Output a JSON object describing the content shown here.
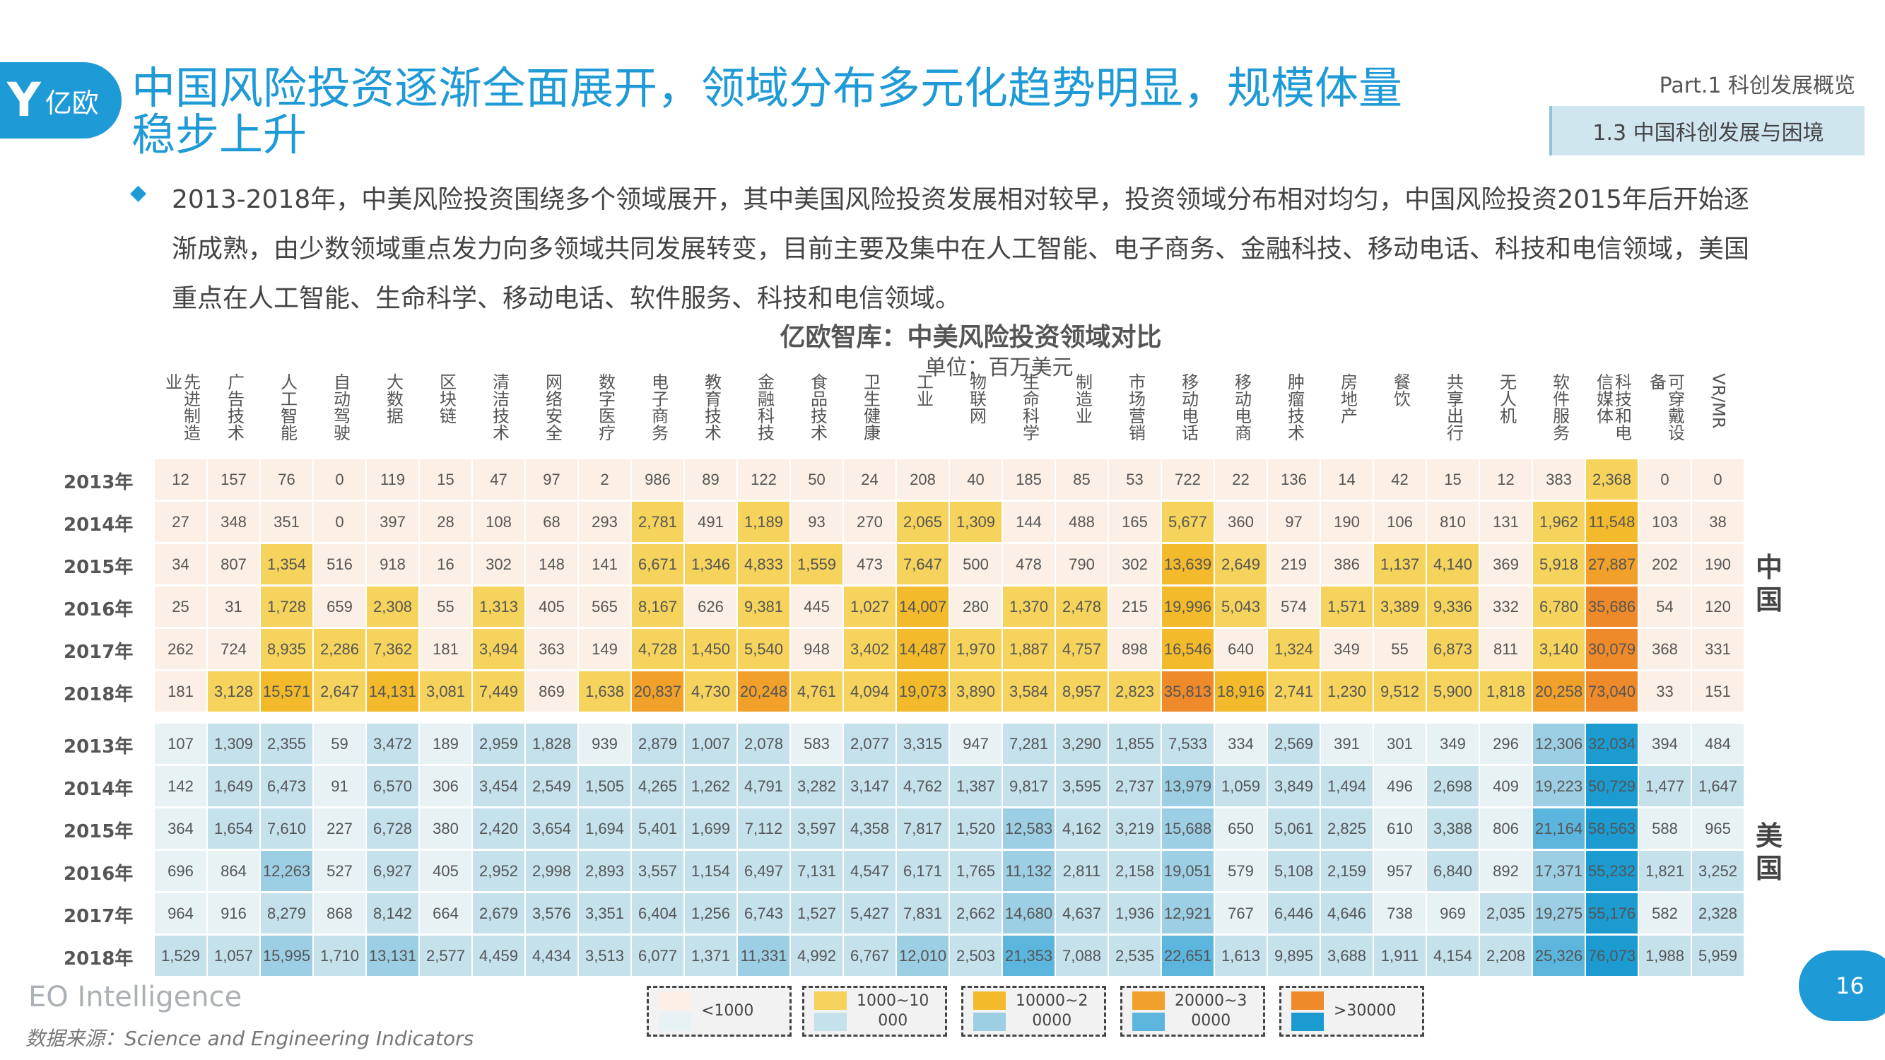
{
  "logo": {
    "mark": "Y",
    "text": "亿欧"
  },
  "header": {
    "title": "中国风险投资逐渐全面展开，领域分布多元化趋势明显，规模体量稳步上升",
    "part": "Part.1 科创发展概览",
    "section": "1.3 中国科创发展与困境"
  },
  "body": {
    "bullet_icon": "diamond-icon",
    "text": "2013-2018年，中美风险投资围绕多个领域展开，其中美国风险投资发展相对较早，投资领域分布相对均匀，中国风险投资2015年后开始逐渐成熟，由少数领域重点发力向多领域共同发展转变，目前主要及集中在人工智能、电子商务、金融科技、移动电话、科技和电信领域，美国重点在人工智能、生命科学、移动电话、软件服务、科技和电信领域。"
  },
  "chart_data": {
    "type": "heatmap",
    "title": "亿欧智库：中美风险投资领域对比",
    "unit": "单位：百万美元",
    "categories": [
      "先进制造业",
      "广告技术",
      "人工智能",
      "自动驾驶",
      "大数据",
      "区块链",
      "清洁技术",
      "网络安全",
      "数字医疗",
      "电子商务",
      "教育技术",
      "金融科技",
      "食品技术",
      "卫生健康",
      "工业",
      "物联网",
      "生命科学",
      "制造业",
      "市场营销",
      "移动电话",
      "移动电商",
      "肿瘤技术",
      "房地产",
      "餐饮",
      "共享出行",
      "无人机",
      "软件服务",
      "科技和电信媒体",
      "可穿戴设备",
      "VR/MR"
    ],
    "groups": [
      {
        "name": "中国",
        "rows": [
          {
            "year": "2013年",
            "values": [
              12,
              157,
              76,
              0,
              119,
              15,
              47,
              97,
              2,
              986,
              89,
              122,
              50,
              24,
              208,
              40,
              185,
              85,
              53,
              722,
              22,
              136,
              14,
              42,
              15,
              12,
              383,
              2368,
              0,
              0
            ]
          },
          {
            "year": "2014年",
            "values": [
              27,
              348,
              351,
              0,
              397,
              28,
              108,
              68,
              293,
              2781,
              491,
              1189,
              93,
              270,
              2065,
              1309,
              144,
              488,
              165,
              5677,
              360,
              97,
              190,
              106,
              810,
              131,
              1962,
              11548,
              103,
              38
            ]
          },
          {
            "year": "2015年",
            "values": [
              34,
              807,
              1354,
              516,
              918,
              16,
              302,
              148,
              141,
              6671,
              1346,
              4833,
              1559,
              473,
              7647,
              500,
              478,
              790,
              302,
              13639,
              2649,
              219,
              386,
              1137,
              4140,
              369,
              5918,
              27887,
              202,
              190
            ]
          },
          {
            "year": "2016年",
            "values": [
              25,
              31,
              1728,
              659,
              2308,
              55,
              1313,
              405,
              565,
              8167,
              626,
              9381,
              445,
              1027,
              14007,
              280,
              1370,
              2478,
              215,
              19996,
              5043,
              574,
              1571,
              3389,
              9336,
              332,
              6780,
              35686,
              54,
              120
            ]
          },
          {
            "year": "2017年",
            "values": [
              262,
              724,
              8935,
              2286,
              7362,
              181,
              3494,
              363,
              149,
              4728,
              1450,
              5540,
              948,
              3402,
              14487,
              1970,
              1887,
              4757,
              898,
              16546,
              640,
              1324,
              349,
              55,
              6873,
              811,
              3140,
              30079,
              368,
              331
            ]
          },
          {
            "year": "2018年",
            "values": [
              181,
              3128,
              15571,
              2647,
              14131,
              3081,
              7449,
              869,
              1638,
              20837,
              4730,
              20248,
              4761,
              4094,
              19073,
              3890,
              3584,
              8957,
              2823,
              35813,
              18916,
              2741,
              1230,
              9512,
              5900,
              1818,
              20258,
              73040,
              33,
              151
            ]
          }
        ]
      },
      {
        "name": "美国",
        "rows": [
          {
            "year": "2013年",
            "values": [
              107,
              1309,
              2355,
              59,
              3472,
              189,
              2959,
              1828,
              939,
              2879,
              1007,
              2078,
              583,
              2077,
              3315,
              947,
              7281,
              3290,
              1855,
              7533,
              334,
              2569,
              391,
              301,
              349,
              296,
              12306,
              32034,
              394,
              484
            ]
          },
          {
            "year": "2014年",
            "values": [
              142,
              1649,
              6473,
              91,
              6570,
              306,
              3454,
              2549,
              1505,
              4265,
              1262,
              4791,
              3282,
              3147,
              4762,
              1387,
              9817,
              3595,
              2737,
              13979,
              1059,
              3849,
              1494,
              496,
              2698,
              409,
              19223,
              50729,
              1477,
              1647
            ]
          },
          {
            "year": "2015年",
            "values": [
              364,
              1654,
              7610,
              227,
              6728,
              380,
              2420,
              3654,
              1694,
              5401,
              1699,
              7112,
              3597,
              4358,
              7817,
              1520,
              12583,
              4162,
              3219,
              15688,
              650,
              5061,
              2825,
              610,
              3388,
              806,
              21164,
              58563,
              588,
              965
            ]
          },
          {
            "year": "2016年",
            "values": [
              696,
              864,
              12263,
              527,
              6927,
              405,
              2952,
              2998,
              2893,
              3557,
              1154,
              6497,
              7131,
              4547,
              6171,
              1765,
              11132,
              2811,
              2158,
              19051,
              579,
              5108,
              2159,
              957,
              6840,
              892,
              17371,
              55232,
              1821,
              3252
            ]
          },
          {
            "year": "2017年",
            "values": [
              964,
              916,
              8279,
              868,
              8142,
              664,
              2679,
              3576,
              3351,
              6404,
              1256,
              6743,
              1527,
              5427,
              7831,
              2662,
              14680,
              4637,
              1936,
              12921,
              767,
              6446,
              4646,
              738,
              969,
              2035,
              19275,
              55176,
              582,
              2328
            ]
          },
          {
            "year": "2018年",
            "values": [
              1529,
              1057,
              15995,
              1710,
              13131,
              2577,
              4459,
              4434,
              3513,
              6077,
              1371,
              11331,
              4992,
              6767,
              12010,
              2503,
              21353,
              7088,
              2535,
              22651,
              1613,
              9895,
              3688,
              1911,
              4154,
              2208,
              25326,
              76073,
              1988,
              5959
            ]
          }
        ]
      }
    ],
    "legend": [
      {
        "label_line1": "<1000",
        "label_line2": "",
        "china_color": "#fcefe5",
        "us_color": "#e8f2f5"
      },
      {
        "label_line1": "1000~10",
        "label_line2": "000",
        "china_color": "#f5d35c",
        "us_color": "#c4e1ec"
      },
      {
        "label_line1": "10000~2",
        "label_line2": "0000",
        "china_color": "#f3bb2b",
        "us_color": "#9dcfe4"
      },
      {
        "label_line1": "20000~3",
        "label_line2": "0000",
        "china_color": "#f1a12a",
        "us_color": "#5bb5dd"
      },
      {
        "label_line1": ">30000",
        "label_line2": "",
        "china_color": "#ef8a2b",
        "us_color": "#1c9bd1"
      }
    ],
    "thresholds": [
      1000,
      10000,
      20000,
      30000
    ]
  },
  "footer": {
    "brand": "EO Intelligence",
    "source": "数据来源：Science and Engineering Indicators",
    "page": "16"
  },
  "colors": {
    "accent": "#1e9ad6"
  }
}
